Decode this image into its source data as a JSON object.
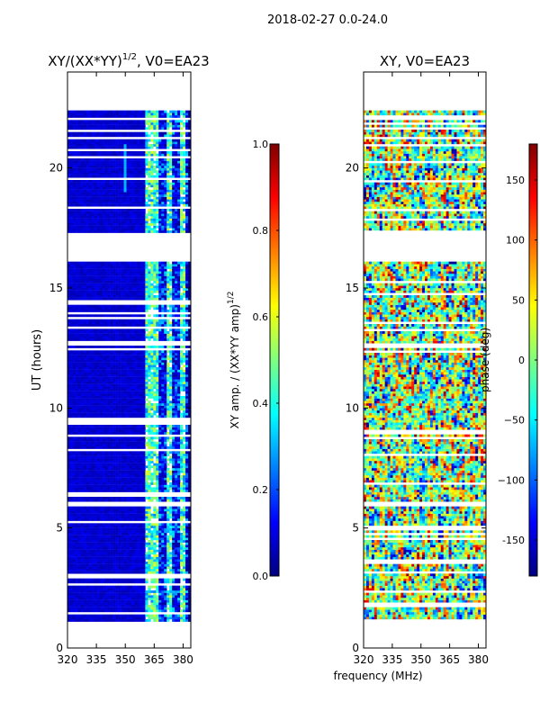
{
  "suptitle": "2018-02-27 0.0-24.0",
  "xlabel": "frequency (MHz)",
  "colors": {
    "jet": [
      "#00007f",
      "#0000ff",
      "#007fff",
      "#00ffff",
      "#7fff7f",
      "#ffff00",
      "#ff7f00",
      "#ff0000",
      "#7f0000"
    ]
  },
  "chart_data": [
    {
      "type": "heatmap",
      "title_main": "XY/(XX*YY)",
      "title_sup": "1/2",
      "title_tail": ", V0=EA23",
      "xlabel": "",
      "ylabel": "UT (hours)",
      "xlim": [
        320,
        384
      ],
      "ylim": [
        0,
        24
      ],
      "xticks": [
        "320",
        "335",
        "350",
        "365",
        "380"
      ],
      "yticks": [
        "0",
        "5",
        "10",
        "15",
        "20"
      ],
      "grid": false,
      "colorbar": {
        "label_main": "XY amp. / (XX*YY amp)",
        "label_sup": "1/2",
        "range": [
          0.0,
          1.0
        ],
        "ticks": [
          "0.0",
          "0.2",
          "0.4",
          "0.6",
          "0.8",
          "1.0"
        ]
      },
      "data_coverage_hours": [
        1.1,
        22.4
      ],
      "gap_hours": [
        [
          16.0,
          17.2
        ]
      ],
      "dominant_level": 0.05,
      "bright_channels_mhz": [
        [
          361,
          367
        ],
        [
          372,
          374
        ],
        [
          378,
          381
        ]
      ]
    },
    {
      "type": "heatmap",
      "title_main": "XY, V0=EA23",
      "xlabel": "",
      "ylabel": "",
      "xlim": [
        320,
        384
      ],
      "ylim": [
        0,
        24
      ],
      "xticks": [
        "320",
        "335",
        "350",
        "365",
        "380"
      ],
      "yticks": [
        "0",
        "5",
        "10",
        "15",
        "20"
      ],
      "grid": false,
      "colorbar": {
        "label": "phase (deg)",
        "range": [
          -180,
          180
        ],
        "ticks": [
          "-150",
          "−100",
          "−50",
          "0",
          "50",
          "100",
          "150"
        ]
      },
      "data_coverage_hours": [
        1.1,
        22.4
      ],
      "gap_hours": [
        [
          16.0,
          17.2
        ]
      ],
      "phase_pattern": "random across full range"
    }
  ]
}
